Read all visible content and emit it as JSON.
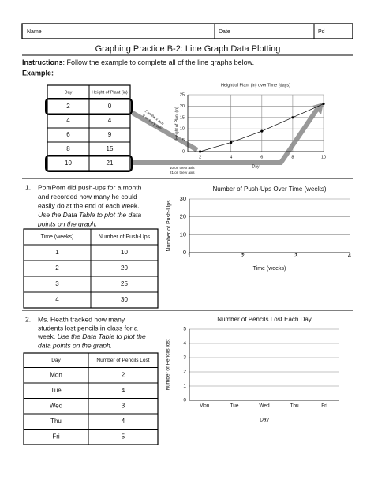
{
  "header": {
    "name": "Name",
    "date": "Date",
    "period": "Pd"
  },
  "title": "Graphing Practice B-2: Line Graph Data Plotting",
  "instructions": {
    "label": "Instructions",
    "text": ": Follow the example to complete all of the line graphs below."
  },
  "example_label": "Example:",
  "example_table": {
    "headers": [
      "Day",
      "Height of Plant (in)"
    ],
    "rows": [
      [
        2,
        0
      ],
      [
        4,
        4
      ],
      [
        6,
        9
      ],
      [
        8,
        15
      ],
      [
        10,
        21
      ]
    ]
  },
  "example_chart": {
    "type": "line",
    "title": "Height of Plant (in) over Time (days)",
    "x_label": "Day",
    "y_label": "Height of Plant (in)",
    "x": [
      2,
      4,
      6,
      8,
      10
    ],
    "values": [
      0,
      4,
      9,
      15,
      21
    ],
    "xlim": [
      1.2,
      10
    ],
    "ylim": [
      0,
      25
    ],
    "xticks": [
      2,
      4,
      6,
      8,
      10
    ],
    "yticks": [
      0,
      5,
      10,
      15,
      20,
      25
    ],
    "grid": true,
    "annotations": [
      "2 on the x axis",
      "0 on the y axis",
      "10 on the x axis",
      "21 on the y axis"
    ]
  },
  "problems": [
    {
      "number": "1.",
      "text": [
        "PomPom did push-ups for a month",
        "and recorded how many he could",
        "easily do at the end of each week."
      ],
      "instruction": [
        "Use the Data Table to plot the data",
        "points on the graph."
      ],
      "table": {
        "headers": [
          "Time (weeks)",
          "Number of Push-Ups"
        ],
        "rows": [
          [
            1,
            10
          ],
          [
            2,
            20
          ],
          [
            3,
            25
          ],
          [
            4,
            30
          ]
        ]
      },
      "chart": {
        "type": "line",
        "title": "Number of Push-Ups Over Time (weeks)",
        "x_label": "Time (weeks)",
        "y_label": "Number of Push-Ups",
        "xlim": [
          1,
          4
        ],
        "ylim": [
          0,
          30
        ],
        "xticks": [
          1,
          2,
          3,
          4
        ],
        "yticks": [
          0,
          10,
          20,
          30
        ],
        "grid": true
      }
    },
    {
      "number": "2.",
      "text": [
        "Ms. Heath tracked how many",
        "students lost pencils in class for a",
        "week."
      ],
      "instruction": [
        "Use the Data Table to plot the",
        "data points on the graph."
      ],
      "table": {
        "headers": [
          "Day",
          "Number of Pencils Lost"
        ],
        "rows": [
          [
            "Mon",
            2
          ],
          [
            "Tue",
            4
          ],
          [
            "Wed",
            3
          ],
          [
            "Thu",
            4
          ],
          [
            "Fri",
            5
          ]
        ]
      },
      "chart": {
        "type": "line",
        "title": "Number of Pencils Lost Each Day",
        "x_label": "Day",
        "y_label": "Number of Pencils lost",
        "categories": [
          "Mon",
          "Tue",
          "Wed",
          "Thu",
          "Fri"
        ],
        "ylim": [
          0,
          5
        ],
        "yticks": [
          0,
          1,
          2,
          3,
          4,
          5
        ],
        "grid": true
      }
    }
  ]
}
